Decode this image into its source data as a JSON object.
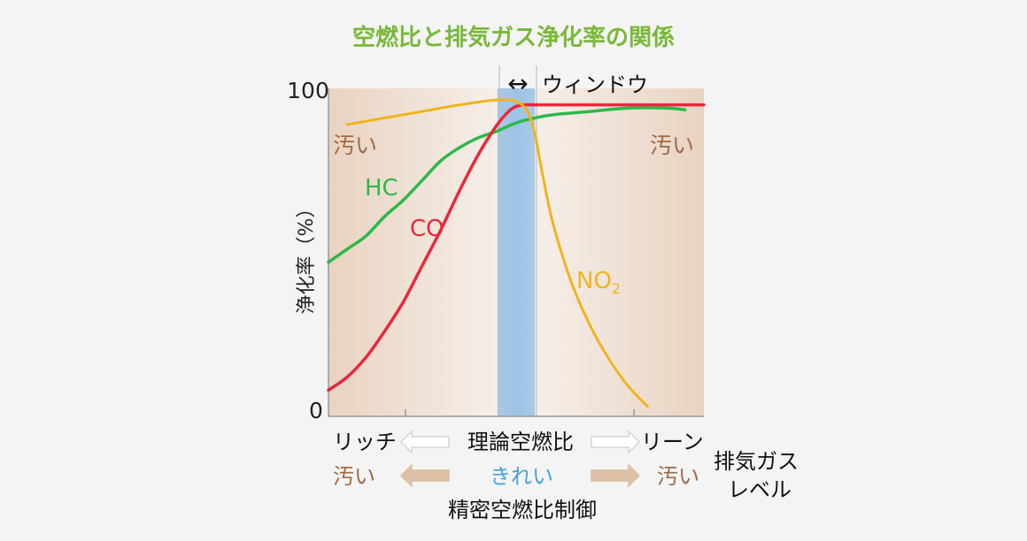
{
  "chart_data": {
    "type": "line",
    "title": "空燃比と排気ガス浄化率の関係",
    "ylabel": "浄化率（%）",
    "ylim": [
      0,
      100
    ],
    "y_tick_labels": [
      "100",
      "0"
    ],
    "x_range": [
      0,
      100
    ],
    "grid": false,
    "window": {
      "x_range": [
        45,
        55
      ],
      "label": "ウィンドウ",
      "arrow": "↔"
    },
    "series": [
      {
        "name": "HC",
        "color": "#2db84a",
        "x": [
          0,
          5,
          10,
          15,
          20,
          25,
          30,
          35,
          40,
          45,
          50,
          55,
          60,
          70,
          80,
          90,
          95
        ],
        "y": [
          47,
          51,
          55,
          61,
          66,
          72,
          78,
          82,
          85,
          87,
          89.5,
          91,
          92,
          93,
          94,
          94,
          93.5
        ]
      },
      {
        "name": "CO",
        "color": "#e8283c",
        "x": [
          0,
          5,
          10,
          15,
          20,
          25,
          30,
          35,
          40,
          45,
          48,
          50,
          52,
          55,
          60,
          70,
          80,
          90,
          100
        ],
        "y": [
          8,
          12,
          18,
          26,
          35,
          46,
          57,
          69,
          80,
          89,
          93,
          94.5,
          95,
          95,
          95,
          95,
          95,
          95,
          95
        ]
      },
      {
        "name": "NO2",
        "color": "#f0b41e",
        "x": [
          5,
          15,
          25,
          35,
          45,
          50,
          53,
          55,
          57,
          60,
          65,
          70,
          75,
          80,
          85
        ],
        "y": [
          89,
          91,
          93,
          95,
          96.5,
          96,
          93,
          86,
          74,
          58,
          40,
          27,
          17,
          9,
          3
        ]
      }
    ],
    "annotations": {
      "left_dirty": "汚い",
      "right_dirty": "汚い"
    },
    "x_axis": {
      "row1": {
        "rich": "リッチ",
        "center": "理論空燃比",
        "lean": "リーン"
      },
      "row2": {
        "left": "汚い",
        "center": "きれい",
        "right": "汚い"
      },
      "row3": "精密空燃比制御",
      "side_label_line1": "排気ガス",
      "side_label_line2": "レベル"
    },
    "colors": {
      "title": "#7ab83a",
      "window_band": "#9cc3e6",
      "dirty_text": "#a06a46",
      "clean_text": "#4aa3dc",
      "plot_bg_edge": "#e9d3c1",
      "plot_bg_center": "#f7f2ee",
      "hollow_arrow": "#ddd4cc",
      "filled_arrow": "#dcc0a5"
    }
  }
}
